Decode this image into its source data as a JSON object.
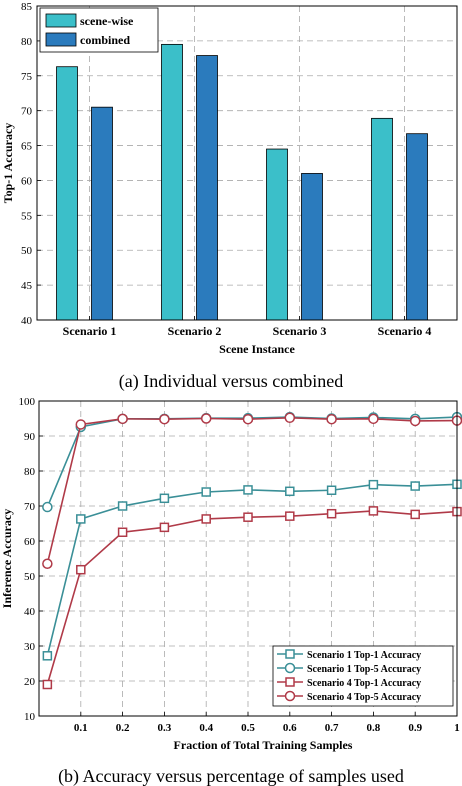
{
  "captions": {
    "a": "(a) Individual versus combined",
    "b": "(b) Accuracy versus percentage of samples used"
  },
  "chart_data": [
    {
      "type": "bar",
      "title": "",
      "xlabel": "Scene Instance",
      "ylabel": "Top-1 Accuracy",
      "categories": [
        "Scenario 1",
        "Scenario 2",
        "Scenario 3",
        "Scenario 4"
      ],
      "ylim": [
        40,
        85
      ],
      "yticks": [
        40,
        45,
        50,
        55,
        60,
        65,
        70,
        75,
        80,
        85
      ],
      "grid": true,
      "legend_position": "top-left",
      "series": [
        {
          "name": "scene-wise",
          "values": [
            76.3,
            79.5,
            64.5,
            68.9
          ],
          "color": "#3bbfc9"
        },
        {
          "name": "combined",
          "values": [
            70.5,
            77.9,
            61.0,
            66.7
          ],
          "color": "#2b7bbd"
        }
      ]
    },
    {
      "type": "line",
      "title": "",
      "xlabel": "Fraction of Total Training Samples",
      "ylabel": "Inference Accuracy",
      "x": [
        0.02,
        0.1,
        0.2,
        0.3,
        0.4,
        0.5,
        0.6,
        0.7,
        0.8,
        0.9,
        1.0
      ],
      "xticks": [
        "0.1",
        "0.2",
        "0.3",
        "0.4",
        "0.5",
        "0.6",
        "0.7",
        "0.8",
        "0.9",
        "1"
      ],
      "xtick_values": [
        0.1,
        0.2,
        0.3,
        0.4,
        0.5,
        0.6,
        0.7,
        0.8,
        0.9,
        1.0
      ],
      "xlim": [
        0,
        1.0
      ],
      "ylim": [
        10,
        100
      ],
      "yticks": [
        10,
        20,
        30,
        40,
        50,
        60,
        70,
        80,
        90,
        100
      ],
      "grid": true,
      "legend_position": "bottom-right",
      "series": [
        {
          "name": "Scenario 1 Top-1 Accuracy",
          "marker": "square",
          "color": "#3a8f97",
          "values": [
            27.2,
            66.3,
            70.0,
            72.2,
            74.0,
            74.6,
            74.2,
            74.5,
            76.1,
            75.7,
            76.2
          ]
        },
        {
          "name": "Scenario 1 Top-5 Accuracy",
          "marker": "circle",
          "color": "#3a8f97",
          "values": [
            69.7,
            92.6,
            94.9,
            94.9,
            95.1,
            95.1,
            95.4,
            95.0,
            95.3,
            94.9,
            95.4
          ]
        },
        {
          "name": "Scenario 4 Top-1 Accuracy",
          "marker": "square",
          "color": "#b03a48",
          "values": [
            19.0,
            51.8,
            62.5,
            63.9,
            66.3,
            66.8,
            67.1,
            67.8,
            68.6,
            67.6,
            68.4
          ]
        },
        {
          "name": "Scenario 4 Top-5 Accuracy",
          "marker": "circle",
          "color": "#b03a48",
          "values": [
            53.5,
            93.3,
            94.9,
            94.8,
            95.0,
            94.8,
            95.2,
            94.8,
            94.9,
            94.3,
            94.4
          ]
        }
      ]
    }
  ]
}
